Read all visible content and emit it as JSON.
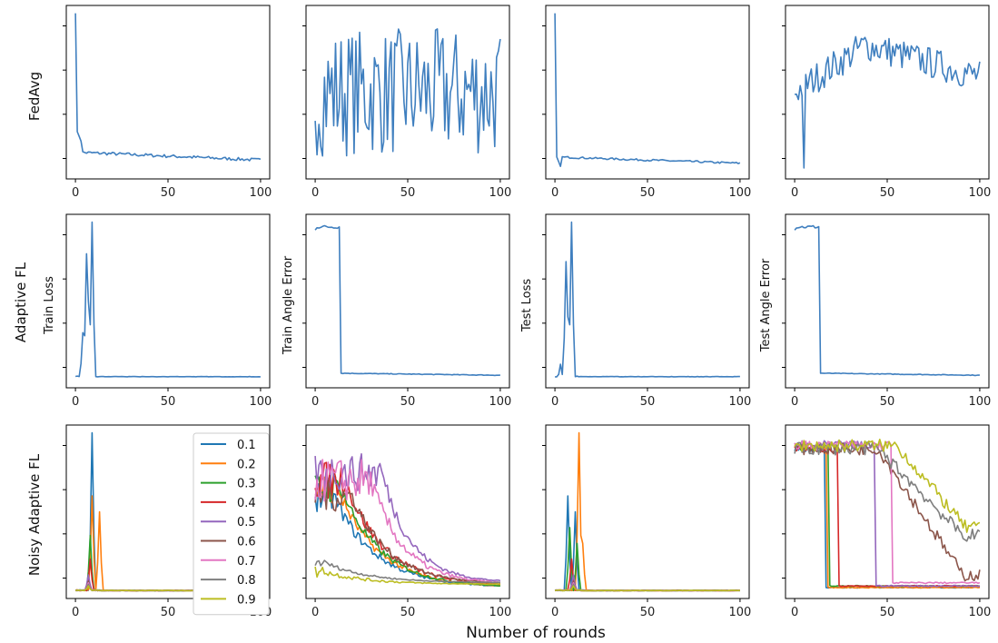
{
  "chart_data": {
    "type": "line",
    "layout": "3x4 grid",
    "row_labels": [
      "FedAvg",
      "Adaptive FL",
      "Noisy Adaptive FL"
    ],
    "column_ylabels": [
      "Train Loss",
      "Train Angle Error",
      "Test Loss",
      "Test Angle Error"
    ],
    "xlabel": "Number of rounds",
    "xlim": [
      0,
      100
    ],
    "xticks": [
      "0",
      "50",
      "100"
    ],
    "legend": {
      "title": "",
      "entries": [
        "0.1",
        "0.2",
        "0.3",
        "0.4",
        "0.5",
        "0.6",
        "0.7",
        "0.8",
        "0.9"
      ],
      "colors": [
        "#1f77b4",
        "#ff7f0e",
        "#2ca02c",
        "#d62728",
        "#9467bd",
        "#8c564b",
        "#e377c2",
        "#7f7f7f",
        "#bcbd22"
      ],
      "location": "top-right of first panel in row 3"
    },
    "single_series_color": "#3f7fbf",
    "panels": [
      {
        "row": 0,
        "col": 0,
        "ylim": [
          0,
          1
        ],
        "series": [
          {
            "name": "FedAvg",
            "kind": "decay",
            "start": 1.0,
            "drop": 0.72,
            "plateau": 0.12,
            "end": 0.07,
            "noise": 0.01
          }
        ]
      },
      {
        "row": 0,
        "col": 1,
        "ylim": [
          0,
          1
        ],
        "series": [
          {
            "name": "FedAvg",
            "kind": "noisy",
            "mean": 0.5,
            "amp": 0.45
          }
        ]
      },
      {
        "row": 0,
        "col": 2,
        "ylim": [
          0,
          1
        ],
        "series": [
          {
            "name": "FedAvg",
            "kind": "decay",
            "start": 1.0,
            "drop": 0.88,
            "plateau": 0.09,
            "end": 0.05,
            "noise": 0.006
          }
        ]
      },
      {
        "row": 0,
        "col": 3,
        "ylim": [
          0,
          1
        ],
        "series": [
          {
            "name": "FedAvg",
            "kind": "trend",
            "start": 0.5,
            "peak": 0.8,
            "end": 0.6,
            "noise": 0.1
          }
        ]
      },
      {
        "row": 1,
        "col": 0,
        "ylim": [
          0,
          1
        ],
        "series": [
          {
            "name": "Adaptive FL",
            "kind": "spike",
            "peaks": [
              [
                4,
                0.3
              ],
              [
                6,
                0.8
              ],
              [
                7,
                0.5
              ],
              [
                9,
                1.0
              ]
            ],
            "base": 0.02,
            "end_round": 12
          }
        ]
      },
      {
        "row": 1,
        "col": 1,
        "ylim": [
          0,
          1
        ],
        "series": [
          {
            "name": "Adaptive FL",
            "kind": "step",
            "high": 0.97,
            "low": 0.03,
            "step_at": 14
          }
        ]
      },
      {
        "row": 1,
        "col": 2,
        "ylim": [
          0,
          1
        ],
        "series": [
          {
            "name": "Adaptive FL",
            "kind": "spike",
            "peaks": [
              [
                3,
                0.1
              ],
              [
                6,
                0.75
              ],
              [
                7,
                0.4
              ],
              [
                9,
                1.0
              ]
            ],
            "base": 0.02,
            "end_round": 12
          }
        ]
      },
      {
        "row": 1,
        "col": 3,
        "ylim": [
          0,
          1
        ],
        "series": [
          {
            "name": "Adaptive FL",
            "kind": "step",
            "high": 0.97,
            "low": 0.03,
            "step_at": 14
          }
        ]
      },
      {
        "row": 2,
        "col": 0,
        "ylim": [
          0,
          1
        ],
        "series": [
          {
            "name": "0.1",
            "kind": "spike",
            "peaks": [
              [
                9,
                1.0
              ]
            ],
            "base": 0.0,
            "end_round": 14
          },
          {
            "name": "0.2",
            "kind": "spike",
            "peaks": [
              [
                9,
                0.6
              ],
              [
                13,
                0.5
              ]
            ],
            "base": 0.0,
            "end_round": 18
          },
          {
            "name": "0.3",
            "kind": "spike",
            "peaks": [
              [
                8,
                0.35
              ]
            ],
            "base": 0.0,
            "end_round": 14
          },
          {
            "name": "0.4",
            "kind": "spike",
            "peaks": [
              [
                8,
                0.2
              ]
            ],
            "base": 0.0,
            "end_round": 12
          },
          {
            "name": "0.5",
            "kind": "spike",
            "peaks": [
              [
                7,
                0.1
              ]
            ],
            "base": 0.0,
            "end_round": 12
          },
          {
            "name": "0.6",
            "kind": "spike",
            "peaks": [
              [
                7,
                0.06
              ]
            ],
            "base": 0.0,
            "end_round": 12
          },
          {
            "name": "0.7",
            "kind": "spike",
            "peaks": [
              [
                7,
                0.05
              ]
            ],
            "base": 0.0,
            "end_round": 12
          },
          {
            "name": "0.8",
            "kind": "spike",
            "peaks": [
              [
                7,
                0.04
              ]
            ],
            "base": 0.0,
            "end_round": 12
          },
          {
            "name": "0.9",
            "kind": "spike",
            "peaks": [
              [
                7,
                0.03
              ]
            ],
            "base": 0.0,
            "end_round": 12
          }
        ]
      },
      {
        "row": 2,
        "col": 1,
        "ylim": [
          0,
          1
        ],
        "series": [
          {
            "name": "0.1",
            "kind": "noisydecay",
            "start": 0.6,
            "hold": 10,
            "end": 0.02,
            "noise": 0.1
          },
          {
            "name": "0.2",
            "kind": "noisydecay",
            "start": 0.65,
            "hold": 12,
            "end": 0.02,
            "noise": 0.1
          },
          {
            "name": "0.3",
            "kind": "noisydecay",
            "start": 0.65,
            "hold": 14,
            "end": 0.02,
            "noise": 0.1
          },
          {
            "name": "0.4",
            "kind": "noisydecay",
            "start": 0.7,
            "hold": 16,
            "end": 0.03,
            "noise": 0.12
          },
          {
            "name": "0.5",
            "kind": "noisydecay",
            "start": 0.75,
            "hold": 36,
            "end": 0.05,
            "noise": 0.12
          },
          {
            "name": "0.6",
            "kind": "noisydecay",
            "start": 0.6,
            "hold": 20,
            "end": 0.04,
            "noise": 0.1
          },
          {
            "name": "0.7",
            "kind": "noisydecay",
            "start": 0.7,
            "hold": 30,
            "end": 0.04,
            "noise": 0.14
          },
          {
            "name": "0.8",
            "kind": "noisydecay",
            "start": 0.18,
            "hold": 5,
            "end": 0.05,
            "noise": 0.03
          },
          {
            "name": "0.9",
            "kind": "noisydecay",
            "start": 0.12,
            "hold": 5,
            "end": 0.04,
            "noise": 0.04
          }
        ]
      },
      {
        "row": 2,
        "col": 2,
        "ylim": [
          0,
          1
        ],
        "series": [
          {
            "name": "0.1",
            "kind": "spike",
            "peaks": [
              [
                7,
                0.6
              ],
              [
                11,
                0.5
              ]
            ],
            "base": 0.0,
            "end_round": 16
          },
          {
            "name": "0.2",
            "kind": "spike",
            "peaks": [
              [
                13,
                1.0
              ],
              [
                15,
                0.3
              ]
            ],
            "base": 0.0,
            "end_round": 18
          },
          {
            "name": "0.3",
            "kind": "spike",
            "peaks": [
              [
                8,
                0.4
              ],
              [
                12,
                0.3
              ]
            ],
            "base": 0.0,
            "end_round": 16
          },
          {
            "name": "0.4",
            "kind": "spike",
            "peaks": [
              [
                9,
                0.2
              ]
            ],
            "base": 0.0,
            "end_round": 14
          },
          {
            "name": "0.5",
            "kind": "spike",
            "peaks": [
              [
                10,
                0.1
              ]
            ],
            "base": 0.0,
            "end_round": 14
          },
          {
            "name": "0.6",
            "kind": "spike",
            "peaks": [
              [
                10,
                0.06
              ]
            ],
            "base": 0.0,
            "end_round": 14
          },
          {
            "name": "0.7",
            "kind": "spike",
            "peaks": [
              [
                10,
                0.05
              ]
            ],
            "base": 0.0,
            "end_round": 14
          },
          {
            "name": "0.8",
            "kind": "spike",
            "peaks": [
              [
                10,
                0.04
              ]
            ],
            "base": 0.0,
            "end_round": 14
          },
          {
            "name": "0.9",
            "kind": "spike",
            "peaks": [
              [
                10,
                0.03
              ]
            ],
            "base": 0.0,
            "end_round": 14
          }
        ]
      },
      {
        "row": 2,
        "col": 3,
        "ylim": [
          0,
          1
        ],
        "series": [
          {
            "name": "0.1",
            "kind": "stepnoisy",
            "high": 0.9,
            "low": 0.02,
            "step_at": 17,
            "noise": 0.02
          },
          {
            "name": "0.2",
            "kind": "stepnoisy",
            "high": 0.9,
            "low": 0.02,
            "step_at": 18,
            "noise": 0.02
          },
          {
            "name": "0.3",
            "kind": "stepnoisy",
            "high": 0.9,
            "low": 0.03,
            "step_at": 19,
            "noise": 0.02
          },
          {
            "name": "0.4",
            "kind": "stepnoisy",
            "high": 0.9,
            "low": 0.03,
            "step_at": 24,
            "noise": 0.02
          },
          {
            "name": "0.5",
            "kind": "stepnoisy",
            "high": 0.92,
            "low": 0.03,
            "step_at": 44,
            "noise": 0.03
          },
          {
            "name": "0.6",
            "kind": "slowdecay",
            "high": 0.9,
            "low": 0.1,
            "start": 45,
            "end": 100,
            "noise": 0.04
          },
          {
            "name": "0.7",
            "kind": "stepnoisy",
            "high": 0.92,
            "low": 0.05,
            "step_at": 53,
            "noise": 0.03
          },
          {
            "name": "0.8",
            "kind": "slowdecay",
            "high": 0.9,
            "low": 0.35,
            "start": 45,
            "end": 100,
            "noise": 0.04
          },
          {
            "name": "0.9",
            "kind": "slowdecay",
            "high": 0.92,
            "low": 0.4,
            "start": 55,
            "end": 100,
            "noise": 0.04
          }
        ]
      }
    ]
  }
}
